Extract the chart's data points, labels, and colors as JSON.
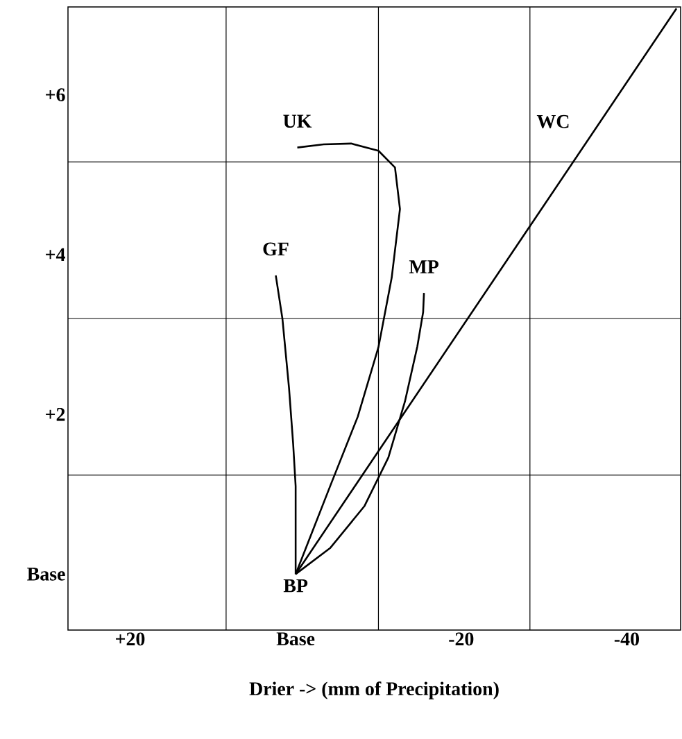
{
  "chart_data": {
    "type": "line",
    "xlabel": "Drier -> (mm of Precipitation)",
    "xlim": [
      27.5,
      -46.5
    ],
    "ylim": [
      -0.7,
      7.1
    ],
    "xticks": [
      {
        "value": 20,
        "label": "+20"
      },
      {
        "value": 0,
        "label": "Base"
      },
      -20,
      -40,
      {
        "value": 8.4,
        "label": null
      },
      {
        "value": -10,
        "label": null
      },
      {
        "value": -28.3,
        "label": null
      }
    ],
    "yticks": [
      {
        "value": 6,
        "label": "+6"
      },
      {
        "value": 4,
        "label": "+4"
      },
      {
        "value": 2,
        "label": "+2"
      },
      {
        "value": 0,
        "label": "Base"
      },
      {
        "value": 5.16,
        "label": null
      },
      {
        "value": 3.2,
        "label": null
      },
      {
        "value": 1.24,
        "label": null
      }
    ],
    "grid": true,
    "series": [
      {
        "name": "UK",
        "color": "#000000",
        "x": [
          0,
          -4.2,
          -7.5,
          -10,
          -11.6,
          -12.6,
          -12,
          -10,
          -6.7,
          -3.4,
          -0.2
        ],
        "values": [
          0,
          1.11,
          1.97,
          2.84,
          3.71,
          4.57,
          5.09,
          5.3,
          5.39,
          5.38,
          5.34
        ]
      },
      {
        "name": "GF",
        "color": "#000000",
        "x": [
          0,
          0,
          0.3,
          0.8,
          1.6,
          2.4
        ],
        "values": [
          0,
          1.1,
          1.63,
          2.33,
          3.2,
          3.74
        ]
      },
      {
        "name": "MP",
        "color": "#000000",
        "x": [
          0,
          -4.2,
          -8.3,
          -11.2,
          -13.2,
          -14.7,
          -15.4,
          -15.5
        ],
        "values": [
          0,
          0.33,
          0.85,
          1.46,
          2.16,
          2.85,
          3.28,
          3.52
        ]
      },
      {
        "name": "WC",
        "color": "#000000",
        "x": [
          0,
          -46
        ],
        "values": [
          0,
          7.08
        ]
      }
    ],
    "annotations": [
      {
        "text": "BP",
        "x": 0,
        "y": 0
      }
    ]
  }
}
